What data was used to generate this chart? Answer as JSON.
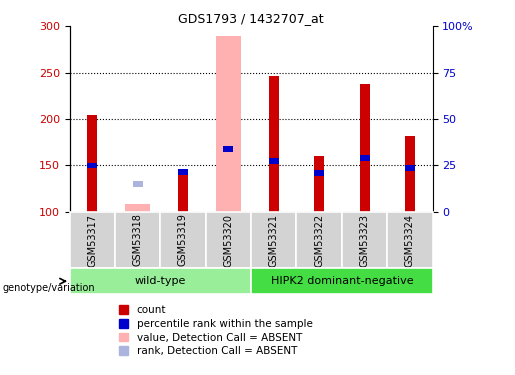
{
  "title": "GDS1793 / 1432707_at",
  "samples": [
    "GSM53317",
    "GSM53318",
    "GSM53319",
    "GSM53320",
    "GSM53321",
    "GSM53322",
    "GSM53323",
    "GSM53324"
  ],
  "count_values": [
    204,
    null,
    145,
    null,
    246,
    160,
    238,
    182
  ],
  "absent_value_values": [
    null,
    108,
    null,
    290,
    null,
    null,
    null,
    null
  ],
  "percentile_values": [
    150,
    null,
    143,
    168,
    155,
    142,
    158,
    147
  ],
  "absent_rank_values": [
    null,
    130,
    null,
    null,
    null,
    null,
    null,
    null
  ],
  "ylim_left": [
    100,
    300
  ],
  "ylim_right": [
    0,
    100
  ],
  "yticks_left": [
    100,
    150,
    200,
    250,
    300
  ],
  "yticks_right": [
    0,
    25,
    50,
    75,
    100
  ],
  "ytick_labels_right": [
    "0",
    "25",
    "50",
    "75",
    "100%"
  ],
  "hlines": [
    150,
    200,
    250
  ],
  "group_labels": [
    "wild-type",
    "HIPK2 dominant-negative"
  ],
  "group_ranges": [
    [
      0,
      3
    ],
    [
      4,
      7
    ]
  ],
  "bar_color_red": "#cc0000",
  "bar_color_absent": "#ffb0b0",
  "bar_color_blue": "#0000cc",
  "bar_color_absent_rank": "#aab4dd",
  "legend_items": [
    {
      "label": "count",
      "color": "#cc0000"
    },
    {
      "label": "percentile rank within the sample",
      "color": "#0000cc"
    },
    {
      "label": "value, Detection Call = ABSENT",
      "color": "#ffb0b0"
    },
    {
      "label": "rank, Detection Call = ABSENT",
      "color": "#aab4dd"
    }
  ],
  "left_tick_color": "#cc0000",
  "right_tick_color": "#0000cc",
  "group_color_1": "#99ee99",
  "group_color_2": "#44dd44"
}
